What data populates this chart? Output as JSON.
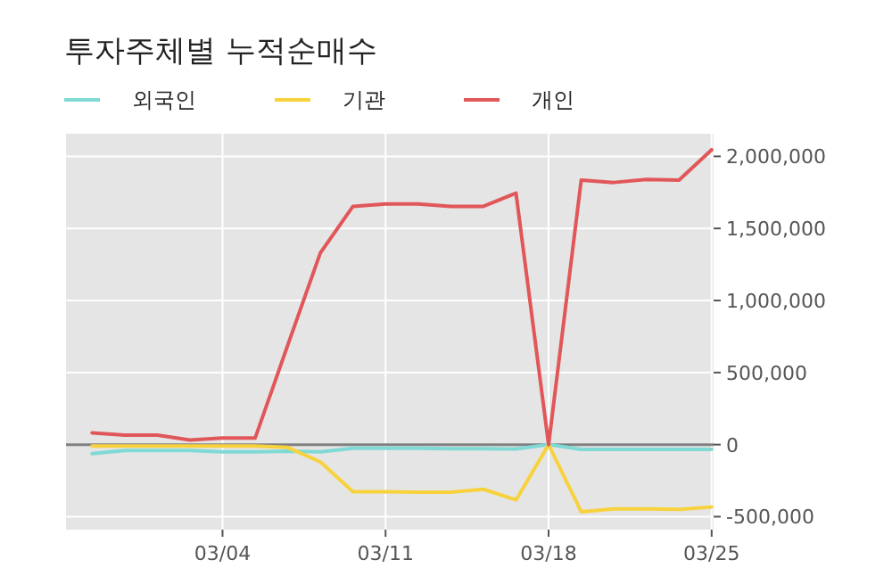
{
  "chart_data": {
    "type": "line",
    "title": "투자주체별 누적순매수",
    "categories": [
      null,
      null,
      null,
      null,
      "03/04",
      null,
      null,
      null,
      null,
      "03/11",
      null,
      null,
      null,
      null,
      "03/18",
      null,
      null,
      null,
      null,
      "03/25"
    ],
    "series": [
      {
        "name": "외국인",
        "color": "#7fd9d4",
        "values": [
          -62000,
          -41000,
          -41000,
          -41000,
          -50000,
          -50000,
          -45000,
          -50000,
          -25000,
          -25000,
          -25000,
          -28000,
          -28000,
          -30000,
          0,
          -33000,
          -33000,
          -33000,
          -33000,
          -33000
        ]
      },
      {
        "name": "기관",
        "color": "#f8d23c",
        "values": [
          -10000,
          -10000,
          -10000,
          -10000,
          -10000,
          -10000,
          -20000,
          -120000,
          -327000,
          -327000,
          -330000,
          -330000,
          -310000,
          -384000,
          0,
          -466000,
          -446000,
          -446000,
          -450000,
          -433000
        ]
      },
      {
        "name": "개인",
        "color": "#e15759",
        "values": [
          82000,
          66000,
          66000,
          32000,
          45000,
          45000,
          690000,
          1330000,
          1653000,
          1670000,
          1670000,
          1653000,
          1653000,
          1745000,
          0,
          1835000,
          1819000,
          1840000,
          1835000,
          2046000
        ]
      }
    ],
    "ylim": [
      -590000,
      2157000
    ],
    "yticks": [
      {
        "value": -500000,
        "label": "-500,000"
      },
      {
        "value": 0,
        "label": "0"
      },
      {
        "value": 500000,
        "label": "500,000"
      },
      {
        "value": 1000000,
        "label": "1,000,000"
      },
      {
        "value": 1500000,
        "label": "1,500,000"
      },
      {
        "value": 2000000,
        "label": "2,000,000"
      }
    ],
    "ref_lines": [
      {
        "axis": "y",
        "value": 0,
        "color": "#808080"
      }
    ],
    "grid": true,
    "legend": "top left"
  }
}
